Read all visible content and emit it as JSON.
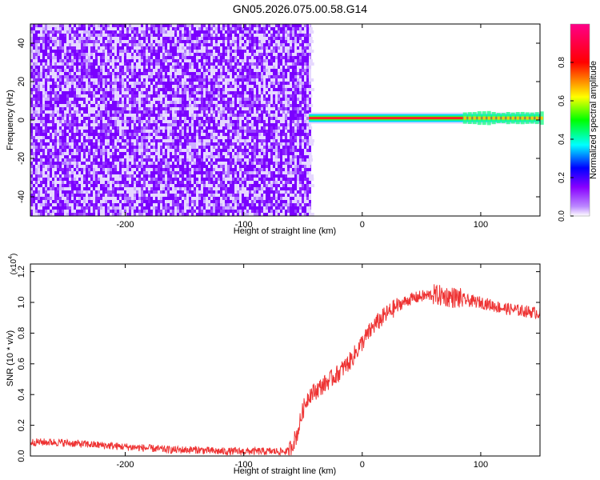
{
  "figure": {
    "title": "GN05.2026.075.00.58.G14"
  },
  "chart_data": [
    {
      "type": "heatmap",
      "title": "GN05.2026.075.00.58.G14",
      "xlabel": "Height of straight line (km)",
      "ylabel": "Frequency (Hz)",
      "xlim": [
        -280,
        150
      ],
      "ylim": [
        -50,
        50
      ],
      "x_ticks": [
        -200,
        -100,
        0,
        100
      ],
      "y_ticks": [
        -40,
        -20,
        0,
        20,
        40
      ],
      "colorbar": {
        "label": "Normalized spectral amplitude",
        "ticks": [
          0.0,
          0.2,
          0.4,
          0.6,
          0.8
        ],
        "range": [
          0,
          1
        ],
        "colors": [
          "#ffffff",
          "#8800ff",
          "#0000ff",
          "#00ffff",
          "#00ff00",
          "#ffff00",
          "#ff0000",
          "#ff0080"
        ]
      },
      "features": {
        "noise_region_x": [
          -280,
          -45
        ],
        "noise_amplitude_range": [
          0.05,
          0.2
        ],
        "signal_line_x": [
          -45,
          150
        ],
        "signal_frequency_hz": 1,
        "signal_amplitude": 0.9
      }
    },
    {
      "type": "line",
      "xlabel": "Height of straight line (km)",
      "ylabel": "SNR (10 * v/v)",
      "y_multiplier": "(x10",
      "y_multiplier_exp": "4",
      "xlim": [
        -280,
        150
      ],
      "ylim": [
        0,
        1.25
      ],
      "x_ticks": [
        -200,
        -100,
        0,
        100
      ],
      "y_ticks": [
        0.0,
        0.2,
        0.4,
        0.6,
        0.8,
        1.0,
        1.2
      ],
      "color": "#ee3333",
      "x": [
        -280,
        -260,
        -240,
        -220,
        -200,
        -180,
        -160,
        -140,
        -120,
        -100,
        -80,
        -62,
        -55,
        -50,
        -45,
        -40,
        -30,
        -20,
        -10,
        0,
        10,
        20,
        30,
        40,
        50,
        60,
        70,
        80,
        90,
        100,
        110,
        120,
        130,
        140,
        150
      ],
      "values": [
        0.09,
        0.09,
        0.08,
        0.07,
        0.06,
        0.05,
        0.04,
        0.04,
        0.03,
        0.03,
        0.03,
        0.03,
        0.14,
        0.3,
        0.4,
        0.42,
        0.48,
        0.54,
        0.62,
        0.74,
        0.85,
        0.92,
        0.98,
        1.02,
        1.04,
        1.05,
        1.04,
        1.03,
        1.01,
        1.0,
        0.98,
        0.96,
        0.95,
        0.94,
        0.93
      ]
    }
  ]
}
